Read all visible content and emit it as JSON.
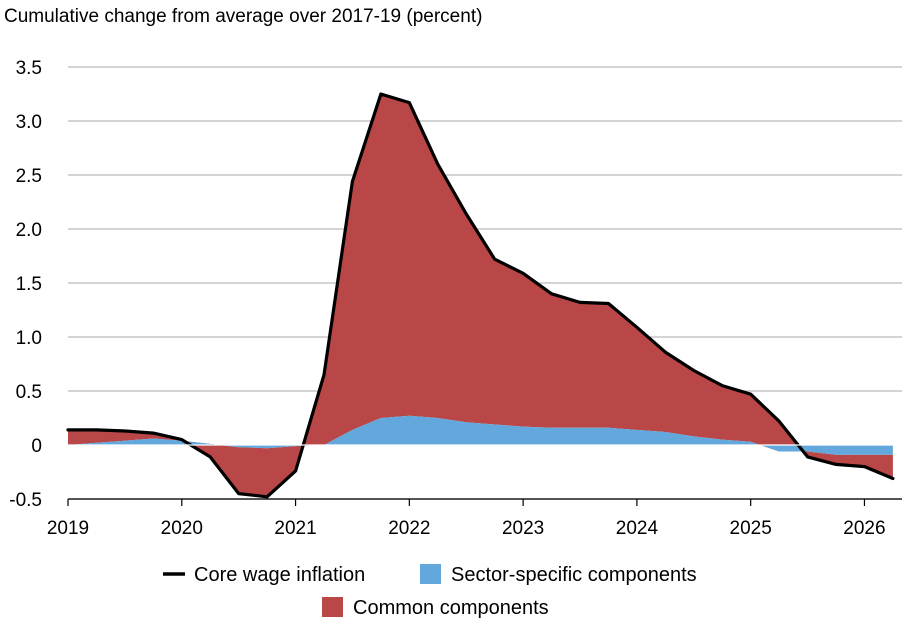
{
  "chart_data": {
    "type": "area",
    "title": "Cumulative change from average over 2017-19 (percent)",
    "xlabel": "",
    "ylabel": "",
    "x_ticks": [
      "2019",
      "2020",
      "2021",
      "2022",
      "2023",
      "2024",
      "2025",
      "2026"
    ],
    "y_ticks": [
      "3.5",
      "3.0",
      "2.5",
      "2.0",
      "1.5",
      "1.0",
      "0.5",
      "0",
      "-0.5"
    ],
    "xlim": [
      2019.0,
      2026.33
    ],
    "ylim": [
      -0.5,
      3.5
    ],
    "grid": "horizontal",
    "legend_position": "bottom",
    "x": [
      2019.0,
      2019.25,
      2019.5,
      2019.75,
      2020.0,
      2020.25,
      2020.5,
      2020.75,
      2021.0,
      2021.25,
      2021.5,
      2021.75,
      2022.0,
      2022.25,
      2022.5,
      2022.75,
      2023.0,
      2023.25,
      2023.5,
      2023.75,
      2024.0,
      2024.25,
      2024.5,
      2024.75,
      2025.0,
      2025.25,
      2025.5,
      2025.75,
      2026.0,
      2026.25
    ],
    "series": [
      {
        "name": "Common components",
        "kind": "stacked-area",
        "color": "#b94747",
        "values": [
          0.14,
          0.12,
          0.09,
          0.05,
          0.01,
          -0.12,
          -0.43,
          -0.45,
          -0.23,
          0.65,
          2.3,
          3.0,
          2.9,
          2.35,
          1.93,
          1.53,
          1.42,
          1.24,
          1.16,
          1.15,
          0.95,
          0.74,
          0.61,
          0.5,
          0.44,
          0.28,
          -0.05,
          -0.09,
          -0.11,
          -0.22
        ]
      },
      {
        "name": "Sector-specific components",
        "kind": "stacked-area",
        "color": "#62a8dc",
        "values": [
          0.0,
          0.02,
          0.04,
          0.06,
          0.04,
          0.01,
          -0.02,
          -0.03,
          -0.01,
          0.0,
          0.14,
          0.25,
          0.27,
          0.25,
          0.21,
          0.19,
          0.17,
          0.16,
          0.16,
          0.16,
          0.14,
          0.12,
          0.08,
          0.05,
          0.03,
          -0.06,
          -0.06,
          -0.09,
          -0.09,
          -0.09
        ]
      },
      {
        "name": "Core wage inflation",
        "kind": "line",
        "color": "#000000",
        "values": [
          0.14,
          0.14,
          0.13,
          0.11,
          0.05,
          -0.11,
          -0.45,
          -0.48,
          -0.24,
          0.65,
          2.44,
          3.25,
          3.17,
          2.6,
          2.14,
          1.72,
          1.59,
          1.4,
          1.32,
          1.31,
          1.09,
          0.86,
          0.69,
          0.55,
          0.47,
          0.22,
          -0.11,
          -0.18,
          -0.2,
          -0.31
        ]
      }
    ],
    "legend": [
      {
        "label": "Core wage inflation",
        "symbol": "line",
        "color": "#000000"
      },
      {
        "label": "Sector-specific components",
        "symbol": "box",
        "color": "#62a8dc"
      },
      {
        "label": "Common components",
        "symbol": "box",
        "color": "#b94747"
      }
    ]
  }
}
